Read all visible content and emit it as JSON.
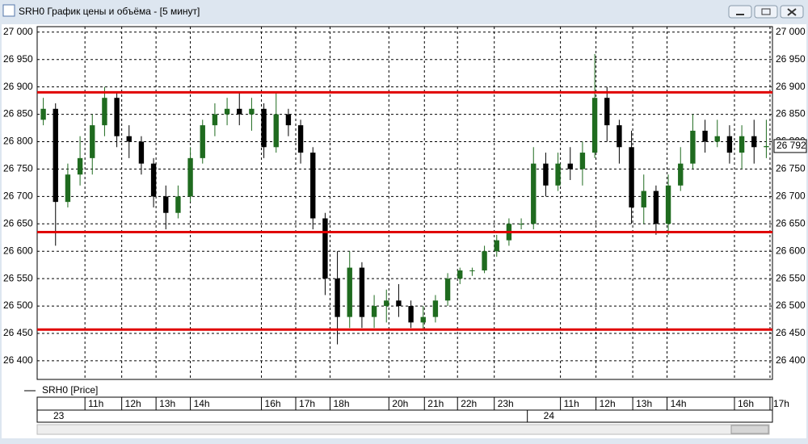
{
  "window": {
    "title": "SRH0 График цены и объёма - [5 минут]"
  },
  "chart_data": {
    "type": "candlestick",
    "series": [
      {
        "name": "SRH0 [Price]",
        "up_color": "#1f6b1f",
        "down_color": "#000000",
        "open": [
          26840,
          26860,
          26690,
          26740,
          26770,
          26830,
          26880,
          26810,
          26800,
          26760,
          26700,
          26670,
          26700,
          26770,
          26830,
          26850,
          26860,
          26850,
          26860,
          26790,
          26850,
          26830,
          26780,
          26660,
          26550,
          26480,
          26570,
          26480,
          26500,
          26510,
          26500,
          26470,
          26480,
          26510,
          26550,
          26565,
          26565,
          26600,
          26620,
          26650,
          26650,
          26760,
          26720,
          26760,
          26750,
          26780,
          26880,
          26830,
          26790,
          26680,
          26710,
          26650,
          26720,
          26760,
          26820,
          26800,
          26810,
          26780,
          26810,
          26790
        ],
        "high": [
          26880,
          26870,
          26760,
          26810,
          26850,
          26900,
          26890,
          26830,
          26810,
          26770,
          26720,
          26720,
          26790,
          26840,
          26870,
          26880,
          26890,
          26880,
          26870,
          26890,
          26860,
          26840,
          26790,
          26670,
          26600,
          26600,
          26580,
          26520,
          26530,
          26540,
          26510,
          26500,
          26520,
          26560,
          26570,
          26570,
          26610,
          26630,
          26660,
          26660,
          26790,
          26780,
          26780,
          26790,
          26800,
          26960,
          26900,
          26840,
          26820,
          26740,
          26720,
          26740,
          26790,
          26850,
          26840,
          26840,
          26830,
          26830,
          26840,
          26840
        ],
        "low": [
          26830,
          26610,
          26680,
          26720,
          26740,
          26810,
          26790,
          26770,
          26740,
          26680,
          26640,
          26660,
          26690,
          26760,
          26810,
          26830,
          26830,
          26820,
          26770,
          26780,
          26810,
          26760,
          26640,
          26520,
          26430,
          26460,
          26460,
          26460,
          26470,
          26480,
          26460,
          26455,
          26470,
          26500,
          26540,
          26555,
          26560,
          26590,
          26610,
          26640,
          26640,
          26700,
          26710,
          26730,
          26720,
          26770,
          26800,
          26760,
          26650,
          26650,
          26630,
          26630,
          26710,
          26750,
          26780,
          26790,
          26760,
          26750,
          26760,
          26770
        ],
        "close": [
          26860,
          26690,
          26740,
          26770,
          26830,
          26880,
          26810,
          26800,
          26760,
          26700,
          26670,
          26700,
          26770,
          26830,
          26850,
          26860,
          26850,
          26860,
          26790,
          26850,
          26830,
          26780,
          26660,
          26550,
          26480,
          26570,
          26480,
          26500,
          26510,
          26500,
          26470,
          26480,
          26510,
          26550,
          26565,
          26565,
          26600,
          26620,
          26650,
          26650,
          26760,
          26720,
          26760,
          26750,
          26780,
          26880,
          26830,
          26790,
          26680,
          26710,
          26650,
          26720,
          26760,
          26820,
          26800,
          26810,
          26780,
          26810,
          26790,
          26792
        ]
      }
    ],
    "ylim": [
      26366,
      27010
    ],
    "yticks": [
      {
        "value": 27000,
        "label": "27 000"
      },
      {
        "value": 26950,
        "label": "26 950"
      },
      {
        "value": 26900,
        "label": "26 900"
      },
      {
        "value": 26850,
        "label": "26 850"
      },
      {
        "value": 26800,
        "label": "26 800"
      },
      {
        "value": 26750,
        "label": "26 750"
      },
      {
        "value": 26700,
        "label": "26 700"
      },
      {
        "value": 26650,
        "label": "26 650"
      },
      {
        "value": 26600,
        "label": "26 600"
      },
      {
        "value": 26550,
        "label": "26 550"
      },
      {
        "value": 26500,
        "label": "26 500"
      },
      {
        "value": 26450,
        "label": "26 450"
      },
      {
        "value": 26400,
        "label": "26 400"
      }
    ],
    "xlim": [
      -0.5,
      59.5
    ],
    "xticks": [
      {
        "value": 3.4,
        "label": "11h"
      },
      {
        "value": 6.4,
        "label": "12h"
      },
      {
        "value": 9.2,
        "label": "13h"
      },
      {
        "value": 12.0,
        "label": "14h"
      },
      {
        "value": 17.8,
        "label": "16h"
      },
      {
        "value": 20.6,
        "label": "17h"
      },
      {
        "value": 23.4,
        "label": "18h"
      },
      {
        "value": 28.2,
        "label": "20h"
      },
      {
        "value": 31.1,
        "label": "21h"
      },
      {
        "value": 33.8,
        "label": "22h"
      },
      {
        "value": 36.8,
        "label": "23h"
      },
      {
        "value": 42.2,
        "label": "11h"
      },
      {
        "value": 45.1,
        "label": "12h"
      },
      {
        "value": 48.1,
        "label": "13h"
      },
      {
        "value": 50.9,
        "label": "14h"
      },
      {
        "value": 56.4,
        "label": "16h"
      },
      {
        "value": 59.3,
        "label": "17h"
      }
    ],
    "date_ticks": [
      {
        "value": -0.5,
        "label": "23"
      },
      {
        "value": 39.5,
        "label": "24"
      }
    ],
    "hlines": [
      {
        "value": 26890,
        "color": "#e00000"
      },
      {
        "value": 26635,
        "color": "#e00000"
      },
      {
        "value": 26457,
        "color": "#e00000"
      }
    ],
    "last_price": {
      "value": 26792,
      "label": "26 792"
    },
    "grid": true
  }
}
